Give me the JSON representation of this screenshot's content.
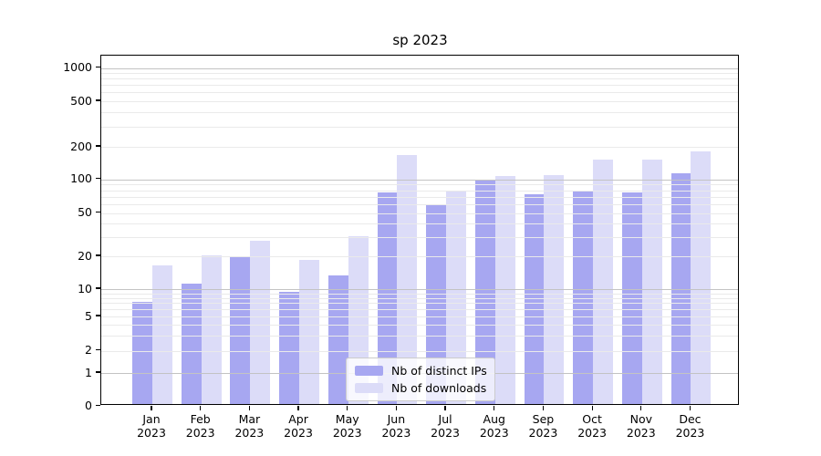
{
  "title": "sp 2023",
  "chart_data": {
    "type": "bar",
    "title": "sp 2023",
    "categories": [
      "Jan 2023",
      "Feb 2023",
      "Mar 2023",
      "Apr 2023",
      "May 2023",
      "Jun 2023",
      "Jul 2023",
      "Aug 2023",
      "Sep 2023",
      "Oct 2023",
      "Nov 2023",
      "Dec 2023"
    ],
    "x_tick_labels": [
      {
        "month": "Jan",
        "year": "2023"
      },
      {
        "month": "Feb",
        "year": "2023"
      },
      {
        "month": "Mar",
        "year": "2023"
      },
      {
        "month": "Apr",
        "year": "2023"
      },
      {
        "month": "May",
        "year": "2023"
      },
      {
        "month": "Jun",
        "year": "2023"
      },
      {
        "month": "Jul",
        "year": "2023"
      },
      {
        "month": "Aug",
        "year": "2023"
      },
      {
        "month": "Sep",
        "year": "2023"
      },
      {
        "month": "Oct",
        "year": "2023"
      },
      {
        "month": "Nov",
        "year": "2023"
      },
      {
        "month": "Dec",
        "year": "2023"
      }
    ],
    "series": [
      {
        "name": "Nb of distinct IPs",
        "color": "#a7a7f1",
        "values": [
          7,
          11,
          19,
          9,
          13,
          75,
          57,
          95,
          72,
          78,
          75,
          112
        ]
      },
      {
        "name": "Nb of downloads",
        "color": "#dcdcf8",
        "values": [
          16,
          20,
          27,
          18,
          30,
          165,
          76,
          105,
          106,
          150,
          148,
          178
        ]
      }
    ],
    "yticks": [
      0,
      1,
      2,
      5,
      10,
      20,
      50,
      100,
      200,
      500,
      1000
    ],
    "ylim": [
      0,
      1000
    ],
    "scale": "log-like",
    "grid": true,
    "legend_position": "bottom-center"
  },
  "legend": {
    "items": [
      {
        "label": "Nb of distinct IPs",
        "color": "#a7a7f1"
      },
      {
        "label": "Nb of downloads",
        "color": "#dcdcf8"
      }
    ]
  }
}
